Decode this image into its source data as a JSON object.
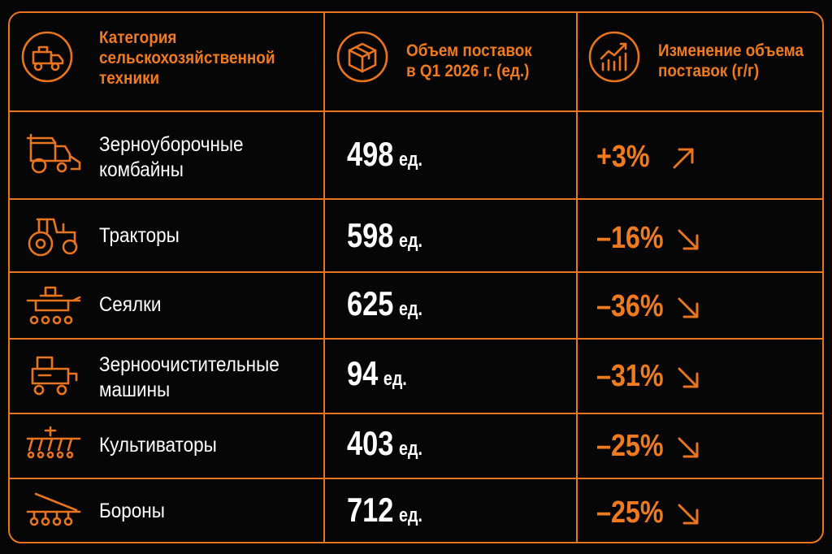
{
  "header": {
    "category_title": [
      "Категория",
      "сельскохозяйственной",
      "техники"
    ],
    "volume_title": [
      "Объем поставок",
      "в Q1 2026 г. (ед.)"
    ],
    "change_title": [
      "Изменение объема",
      "поставок (г/г)"
    ]
  },
  "rows": [
    {
      "label": [
        "Зерноуборочные",
        "комбайны"
      ],
      "value": "498",
      "unit": "ед.",
      "change": "+3%",
      "trend": "up",
      "icon": "combine-harvester-icon"
    },
    {
      "label": [
        "Тракторы"
      ],
      "value": "598",
      "unit": "ед.",
      "change": "–16%",
      "trend": "down",
      "icon": "tractor-icon"
    },
    {
      "label": [
        "Сеялки"
      ],
      "value": "625",
      "unit": "ед.",
      "change": "–36%",
      "trend": "down",
      "icon": "seeder-icon"
    },
    {
      "label": [
        "Зерноочистительные",
        "машины"
      ],
      "value": "94",
      "unit": "ед.",
      "change": "–31%",
      "trend": "down",
      "icon": "grain-cleaner-icon"
    },
    {
      "label": [
        "Культиваторы"
      ],
      "value": "403",
      "unit": "ед.",
      "change": "–25%",
      "trend": "down",
      "icon": "cultivator-icon"
    },
    {
      "label": [
        "Бороны"
      ],
      "value": "712",
      "unit": "ед.",
      "change": "–25%",
      "trend": "down",
      "icon": "harrow-icon"
    }
  ],
  "colors": {
    "accent": "#e8741e",
    "text": "#ffffff",
    "background": "#060606"
  }
}
